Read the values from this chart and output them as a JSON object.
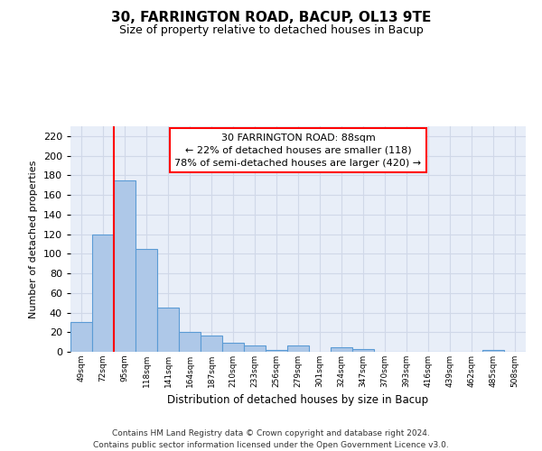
{
  "title1": "30, FARRINGTON ROAD, BACUP, OL13 9TE",
  "title2": "Size of property relative to detached houses in Bacup",
  "xlabel": "Distribution of detached houses by size in Bacup",
  "ylabel": "Number of detached properties",
  "categories": [
    "49sqm",
    "72sqm",
    "95sqm",
    "118sqm",
    "141sqm",
    "164sqm",
    "187sqm",
    "210sqm",
    "233sqm",
    "256sqm",
    "279sqm",
    "301sqm",
    "324sqm",
    "347sqm",
    "370sqm",
    "393sqm",
    "416sqm",
    "439sqm",
    "462sqm",
    "485sqm",
    "508sqm"
  ],
  "values": [
    30,
    120,
    175,
    105,
    45,
    20,
    17,
    9,
    6,
    2,
    6,
    0,
    5,
    3,
    0,
    0,
    0,
    0,
    0,
    2,
    0
  ],
  "bar_color": "#aec8e8",
  "bar_edge_color": "#5b9bd5",
  "annotation_text": "30 FARRINGTON ROAD: 88sqm\n← 22% of detached houses are smaller (118)\n78% of semi-detached houses are larger (420) →",
  "annotation_box_color": "white",
  "annotation_box_edge": "red",
  "redline_x": 1.5,
  "ylim": [
    0,
    230
  ],
  "yticks": [
    0,
    20,
    40,
    60,
    80,
    100,
    120,
    140,
    160,
    180,
    200,
    220
  ],
  "grid_color": "#d0d8e8",
  "background_color": "#e8eef8",
  "footer": "Contains HM Land Registry data © Crown copyright and database right 2024.\nContains public sector information licensed under the Open Government Licence v3.0."
}
